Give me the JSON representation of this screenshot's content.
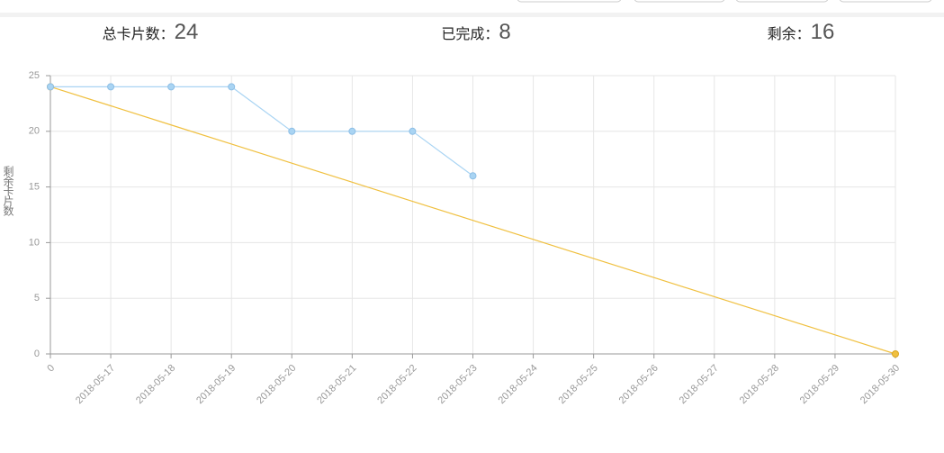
{
  "stats": [
    {
      "label": "总卡片数：",
      "value": 24
    },
    {
      "label": "已完成：",
      "value": 8
    },
    {
      "label": "剩余：",
      "value": 16
    }
  ],
  "chart_data": {
    "type": "line",
    "ylabel": "剩余卡片数",
    "categories": [
      "0",
      "2018-05-17",
      "2018-05-18",
      "2018-05-19",
      "2018-05-20",
      "2018-05-21",
      "2018-05-22",
      "2018-05-23",
      "2018-05-24",
      "2018-05-25",
      "2018-05-26",
      "2018-05-27",
      "2018-05-28",
      "2018-05-29",
      "2018-05-30"
    ],
    "series": [
      {
        "color": "#f0c040",
        "values": [
          24,
          22.29,
          20.57,
          18.86,
          17.14,
          15.43,
          13.71,
          12,
          10.29,
          8.57,
          6.86,
          5.14,
          3.43,
          1.71,
          0
        ]
      },
      {
        "color": "#a9d4f3",
        "values": [
          24,
          24,
          24,
          24,
          20,
          20,
          20,
          16,
          null,
          null,
          null,
          null,
          null,
          null,
          null
        ]
      }
    ],
    "ylim": [
      0,
      25
    ],
    "yticks": [
      0,
      5,
      10,
      15,
      20,
      25
    ],
    "grid": true
  }
}
